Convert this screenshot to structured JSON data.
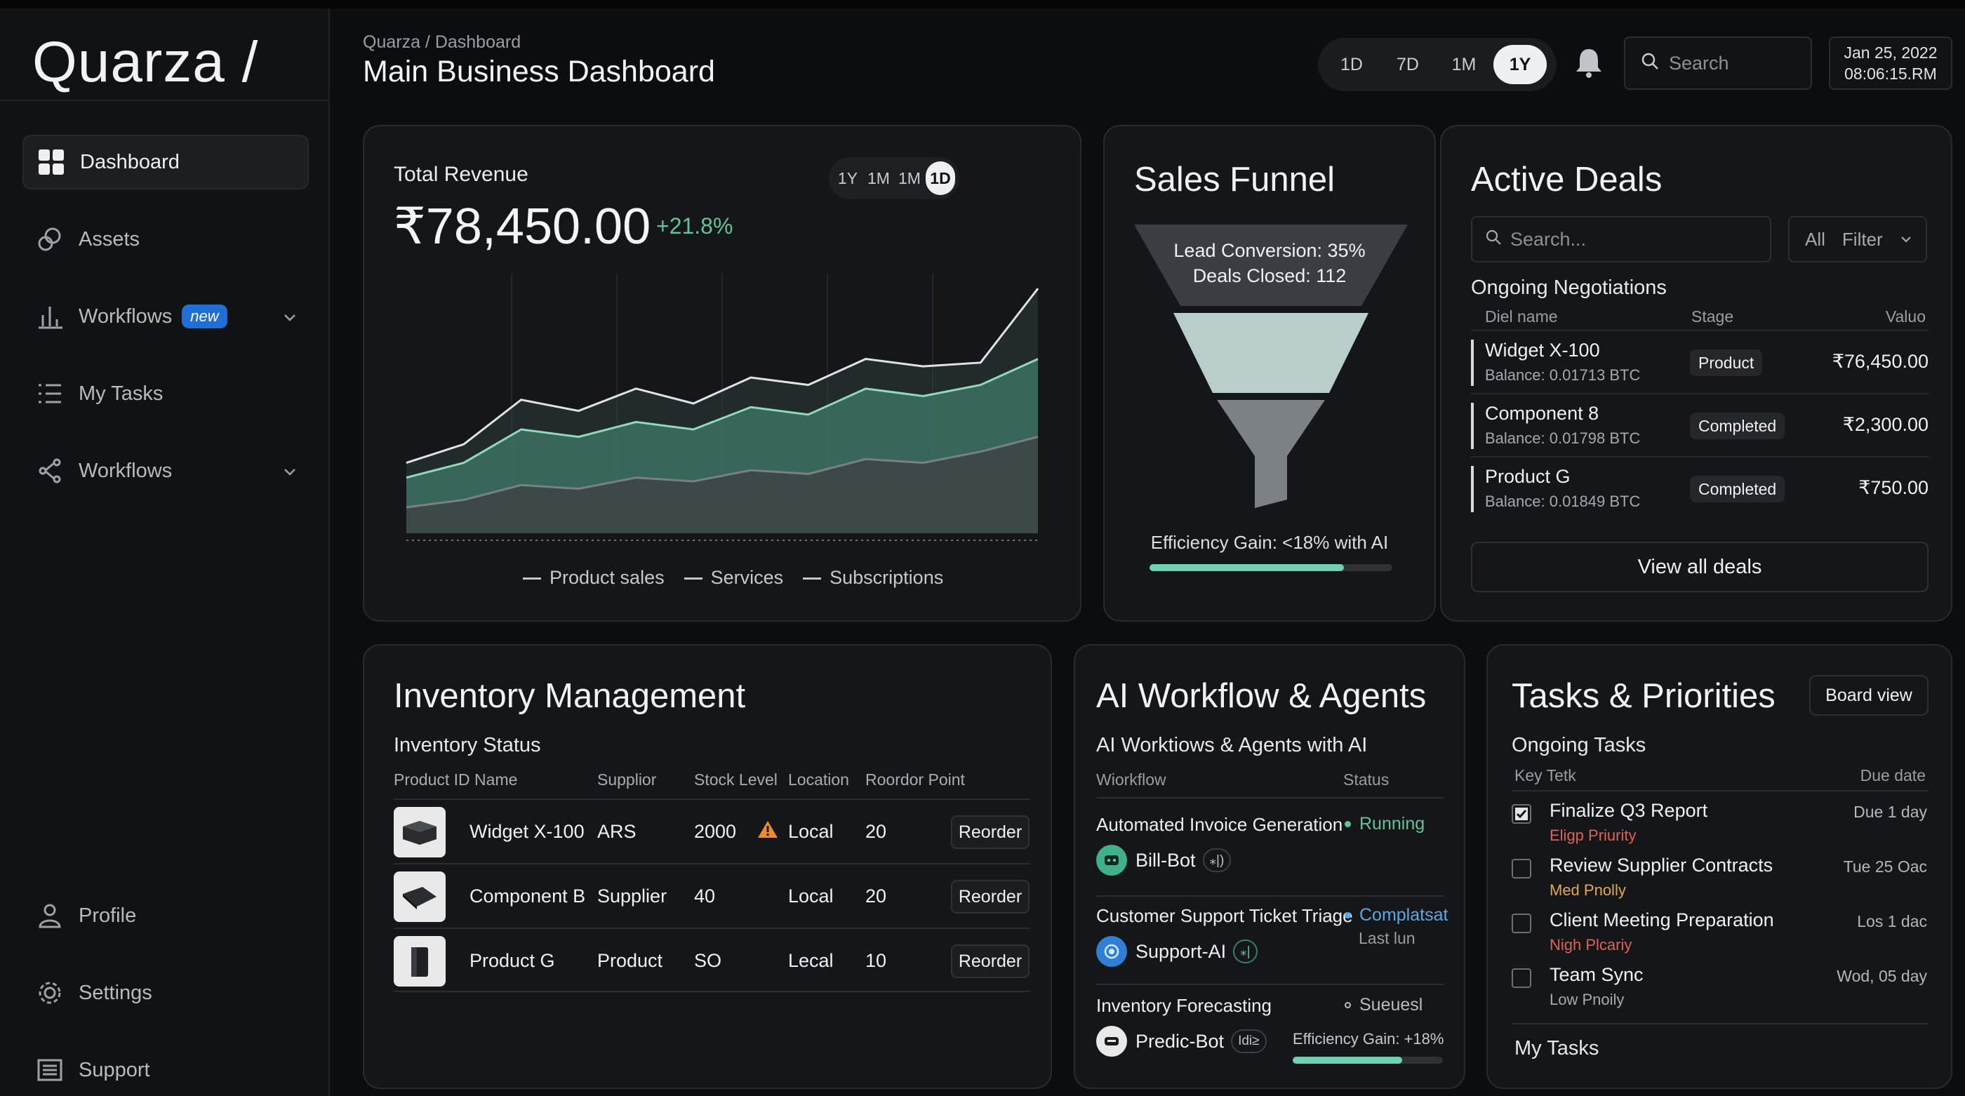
{
  "app": {
    "brand": "Quarza /"
  },
  "sidebar": {
    "items": [
      {
        "label": "Dashboard",
        "icon": "dashboard-grid-icon"
      },
      {
        "label": "Assets",
        "icon": "assets-icon"
      },
      {
        "label": "Workflows",
        "icon": "bar-chart-icon",
        "badge": "new"
      },
      {
        "label": "My Tasks",
        "icon": "list-icon"
      },
      {
        "label": "Workflows",
        "icon": "workflow-icon"
      }
    ],
    "bottom": [
      {
        "label": "Profile",
        "icon": "user-icon"
      },
      {
        "label": "Settings",
        "icon": "gear-icon"
      },
      {
        "label": "Support",
        "icon": "support-icon"
      }
    ]
  },
  "header": {
    "breadcrumb": "Quarza / Dashboard",
    "title": "Main Business Dashboard",
    "ranges": [
      "1D",
      "7D",
      "1M",
      "1Y"
    ],
    "selected_range": "1Y",
    "search_placeholder": "Search",
    "date": "Jan 25, 2022",
    "time": "08:06:15.RM"
  },
  "revenue": {
    "label": "Total Revenue",
    "value": "₹78,450.00",
    "change": "+21.8%",
    "ranges": [
      "1Y",
      "1M",
      "1M",
      "1D"
    ],
    "selected_range": "1D",
    "legend": [
      "Product sales",
      "Services",
      "Subscriptions"
    ],
    "colors": {
      "accent": "#63c29a"
    }
  },
  "chart_data": {
    "type": "area",
    "x": [
      1,
      2,
      3,
      4,
      5,
      6,
      7,
      8,
      9,
      10,
      11,
      12
    ],
    "series": [
      {
        "name": "Product sales",
        "values": [
          38,
          48,
          72,
          66,
          78,
          70,
          84,
          80,
          94,
          90,
          92,
          132
        ]
      },
      {
        "name": "Services",
        "values": [
          30,
          38,
          56,
          52,
          60,
          56,
          68,
          64,
          78,
          74,
          80,
          94
        ]
      },
      {
        "name": "Subscriptions",
        "values": [
          14,
          18,
          26,
          24,
          30,
          28,
          34,
          32,
          40,
          38,
          44,
          52
        ]
      }
    ],
    "ylim": [
      0,
      140
    ],
    "grid": true,
    "legend_position": "bottom"
  },
  "funnel": {
    "title": "Sales Funnel",
    "lead_conversion": "Lead Conversion: 35%",
    "deals_closed": "Deals Closed: 112",
    "efficiency": "Efficiency Gain: <18% with AI",
    "efficiency_progress": 0.8
  },
  "deals": {
    "title": "Active Deals",
    "search_placeholder": "Search...",
    "filter_all": "All",
    "filter_label": "Filter",
    "section": "Ongoing Negotiations",
    "columns": [
      "Diel name",
      "Stage",
      "Valuo"
    ],
    "rows": [
      {
        "name": "Widget X-100",
        "balance": "Balance: 0.01713 BTC",
        "stage": "Product",
        "value": "₹76,450.00"
      },
      {
        "name": "Component 8",
        "balance": "Balance: 0.01798 BTC",
        "stage": "Completed",
        "value": "₹2,300.00"
      },
      {
        "name": "Product G",
        "balance": "Balance: 0.01849 BTC",
        "stage": "Completed",
        "value": "₹750.00"
      }
    ],
    "view_all": "View all deals"
  },
  "inventory": {
    "title": "Inventory Management",
    "section": "Inventory Status",
    "columns": [
      "Product ID Name",
      "Supplior",
      "Stock Level",
      "Location",
      "Roordor Point"
    ],
    "rows": [
      {
        "name": "Widget X-100",
        "supplier": "ARS",
        "stock": "2000",
        "location": "Local",
        "reorder_point": "20",
        "warning": true,
        "action": "Reorder"
      },
      {
        "name": "Component B",
        "supplier": "Supplier",
        "stock": "40",
        "location": "Local",
        "reorder_point": "20",
        "warning": false,
        "action": "Reorder"
      },
      {
        "name": "Product G",
        "supplier": "Product",
        "stock": "SO",
        "location": "Lecal",
        "reorder_point": "10",
        "warning": false,
        "action": "Reorder"
      }
    ]
  },
  "ai": {
    "title": "AI Workflow & Agents",
    "subtitle": "AI Worktiows & Agents with AI",
    "col_workflow": "Wiorkflow",
    "col_status": "Status",
    "items": [
      {
        "workflow": "Automated Invoice Generation",
        "status": "Running",
        "status_color": "#63c29a",
        "agent": "Bill-Bot",
        "tag": "⁎|)"
      },
      {
        "workflow": "Customer Support Ticket Triage",
        "status": "Complatsat",
        "status_color": "#5aa9e6",
        "status_sub": "Last lun",
        "agent": "Support-AI",
        "tag": "⁎|"
      },
      {
        "workflow": "Inventory Forecasting",
        "status": "Sueuesl",
        "status_color": "#b8bbbe",
        "agent": "Predic-Bot",
        "tag": "Idi≥",
        "efficiency": "Efficiency Gain: +18%",
        "efficiency_progress": 0.73
      }
    ]
  },
  "tasks": {
    "title": "Tasks & Priorities",
    "board_view": "Board view",
    "section": "Ongoing Tasks",
    "col_task": "Key Tetk",
    "col_due": "Due date",
    "items": [
      {
        "name": "Finalize Q3 Report",
        "priority": "Eligp Priurity",
        "pri_color": "#e0605a",
        "due": "Due 1 day",
        "checked": true
      },
      {
        "name": "Review Supplier Contracts",
        "priority": "Med Pnolly",
        "pri_color": "#e6a84a",
        "due": "Tue 25 Oac",
        "checked": false
      },
      {
        "name": "Client Meeting Preparation",
        "priority": "Nigh Plcariy",
        "pri_color": "#e0605a",
        "due": "Los 1 dac",
        "checked": false
      },
      {
        "name": "Team Sync",
        "priority": "Low Pnoily",
        "pri_color": "#a6aaae",
        "due": "Wod, 05 day",
        "checked": false
      }
    ],
    "footer": "My Tasks"
  }
}
